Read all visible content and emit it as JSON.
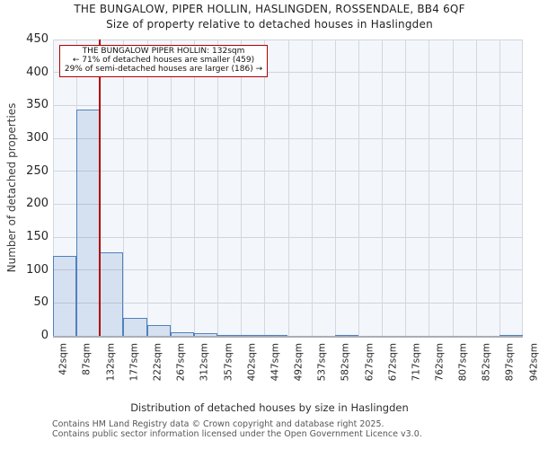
{
  "title": {
    "line1": "THE BUNGALOW, PIPER HOLLIN, HASLINGDEN, ROSSENDALE, BB4 6QF",
    "line2": "Size of property relative to detached houses in Haslingden"
  },
  "annotation": {
    "line1": "THE BUNGALOW PIPER HOLLIN: 132sqm",
    "line2": "← 71% of detached houses are smaller (459)",
    "line3": "29% of semi-detached houses are larger (186) →"
  },
  "chart_data": {
    "type": "bar",
    "title": "THE BUNGALOW, PIPER HOLLIN, HASLINGDEN, ROSSENDALE, BB4 6QF",
    "subtitle": "Size of property relative to detached houses in Haslingden",
    "xlabel": "Distribution of detached houses by size in Haslingden",
    "ylabel": "Number of detached properties",
    "categories": [
      "42sqm",
      "87sqm",
      "132sqm",
      "177sqm",
      "222sqm",
      "267sqm",
      "312sqm",
      "357sqm",
      "402sqm",
      "447sqm",
      "492sqm",
      "537sqm",
      "582sqm",
      "627sqm",
      "672sqm",
      "717sqm",
      "762sqm",
      "807sqm",
      "852sqm",
      "897sqm",
      "942sqm"
    ],
    "bin_edges_sqm": [
      42,
      87,
      132,
      177,
      222,
      267,
      312,
      357,
      402,
      447,
      492,
      537,
      582,
      627,
      672,
      717,
      762,
      807,
      852,
      897,
      942
    ],
    "values": [
      122,
      343,
      127,
      27,
      16,
      6,
      4,
      1,
      1,
      1,
      0,
      0,
      1,
      0,
      0,
      0,
      0,
      0,
      0,
      2
    ],
    "ylim": [
      0,
      450
    ],
    "ytick_step": 50,
    "yticks": [
      0,
      50,
      100,
      150,
      200,
      250,
      300,
      350,
      400,
      450
    ],
    "grid": true,
    "legend": "none",
    "marker_value_sqm": 132,
    "marker_label": "THE BUNGALOW PIPER HOLLIN: 132sqm",
    "smaller_pct": "71%",
    "smaller_count": 459,
    "larger_pct": "29%",
    "larger_count": 186
  },
  "colors": {
    "bar_fill": "#dbe5f3",
    "bar_edge": "#4f81bd",
    "marker_red": "#b00000",
    "plot_bg": "#f3f7fc",
    "grid": "#d0d5dd",
    "footer_text": "#575757"
  },
  "footer": {
    "line1": "Contains HM Land Registry data © Crown copyright and database right 2025.",
    "line2": "Contains public sector information licensed under the Open Government Licence v3.0."
  }
}
